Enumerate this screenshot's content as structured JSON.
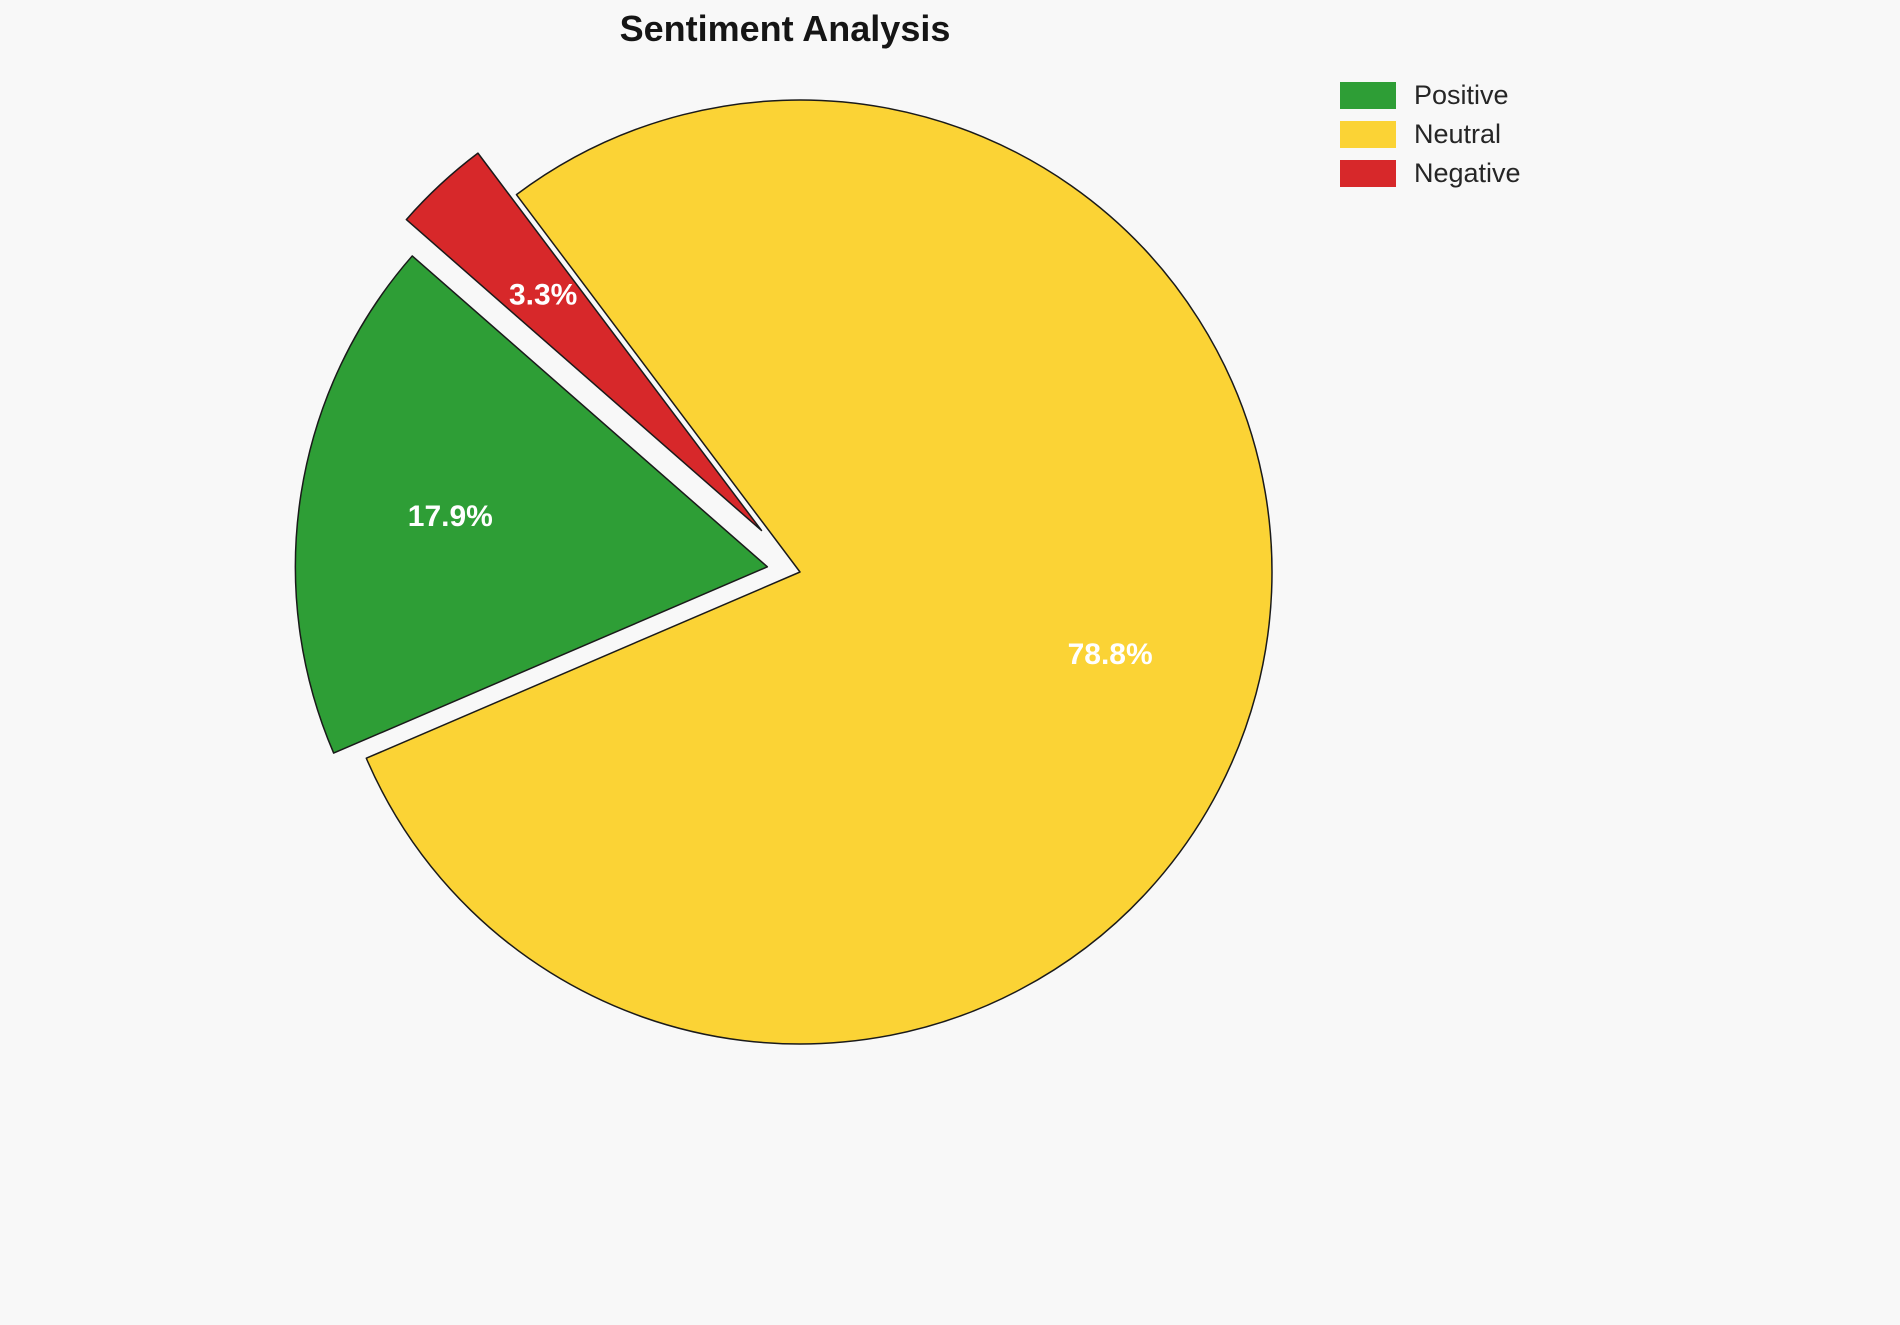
{
  "title": "Sentiment Analysis",
  "background": "#f8f8f8",
  "chart_data": {
    "type": "pie",
    "title": "Sentiment Analysis",
    "labels": [
      "Positive",
      "Neutral",
      "Negative"
    ],
    "values": [
      17.9,
      78.8,
      3.3
    ],
    "percent_labels": [
      "17.9%",
      "78.8%",
      "3.3%"
    ],
    "colors": [
      "#2e9e36",
      "#fbd335",
      "#d7282a"
    ],
    "explode": [
      0.07,
      0,
      0.12
    ],
    "start_angle": 138.8,
    "direction": "counterclockwise",
    "slice_edge_color": "#1a1a1a",
    "label_text_color": "#ffffff",
    "legend_position": "upper right"
  },
  "legend": {
    "items": [
      {
        "label": "Positive",
        "color": "#2e9e36"
      },
      {
        "label": "Neutral",
        "color": "#fbd335"
      },
      {
        "label": "Negative",
        "color": "#d7282a"
      }
    ]
  }
}
